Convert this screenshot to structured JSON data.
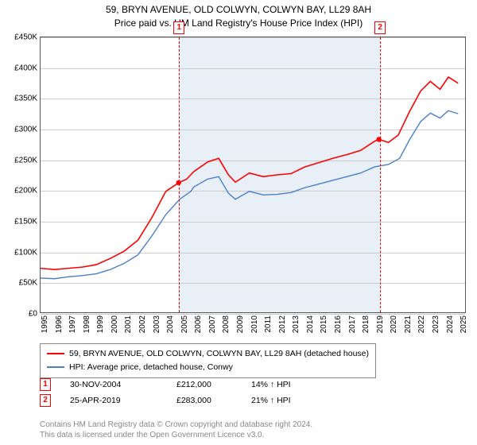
{
  "title": {
    "line1": "59, BRYN AVENUE, OLD COLWYN, COLWYN BAY, LL29 8AH",
    "line2": "Price paid vs. HM Land Registry's House Price Index (HPI)"
  },
  "chart": {
    "type": "line",
    "background_color": "#ffffff",
    "shaded_band_color": "#e8eff7",
    "grid_color": "#cccccc",
    "marker_border_color": "#ff0000",
    "x_years": [
      1995,
      1996,
      1997,
      1998,
      1999,
      2000,
      2001,
      2002,
      2003,
      2004,
      2005,
      2006,
      2007,
      2008,
      2009,
      2010,
      2011,
      2012,
      2013,
      2014,
      2015,
      2016,
      2017,
      2018,
      2019,
      2020,
      2021,
      2022,
      2023,
      2024,
      2025
    ],
    "xlim": [
      1995,
      2025.5
    ],
    "ylim": [
      0,
      450000
    ],
    "ytick_step": 50000,
    "y_ticks": [
      0,
      50000,
      100000,
      150000,
      200000,
      250000,
      300000,
      350000,
      400000,
      450000
    ],
    "y_tick_labels": [
      "£0",
      "£50K",
      "£100K",
      "£150K",
      "£200K",
      "£250K",
      "£300K",
      "£350K",
      "£400K",
      "£450K"
    ],
    "shaded_band": {
      "x_start": 2004.92,
      "x_end": 2019.31
    },
    "markers": [
      {
        "id": "1",
        "x": 2004.92,
        "y": 212000
      },
      {
        "id": "2",
        "x": 2019.31,
        "y": 283000
      }
    ],
    "series": [
      {
        "name": "property",
        "label": "59, BRYN AVENUE, OLD COLWYN, COLWYN BAY, LL29 8AH (detached house)",
        "color": "#ff0000",
        "line_width": 1.6,
        "points": [
          [
            1995,
            72000
          ],
          [
            1996,
            70000
          ],
          [
            1997,
            72000
          ],
          [
            1998,
            74000
          ],
          [
            1999,
            78000
          ],
          [
            2000,
            88000
          ],
          [
            2001,
            100000
          ],
          [
            2002,
            118000
          ],
          [
            2003,
            155000
          ],
          [
            2004,
            198000
          ],
          [
            2004.92,
            212000
          ],
          [
            2005.5,
            218000
          ],
          [
            2006,
            230000
          ],
          [
            2007,
            246000
          ],
          [
            2007.8,
            252000
          ],
          [
            2008.5,
            225000
          ],
          [
            2009,
            213000
          ],
          [
            2010,
            228000
          ],
          [
            2011,
            222000
          ],
          [
            2012,
            225000
          ],
          [
            2013,
            227000
          ],
          [
            2014,
            238000
          ],
          [
            2015,
            245000
          ],
          [
            2016,
            252000
          ],
          [
            2017,
            258000
          ],
          [
            2018,
            265000
          ],
          [
            2019,
            280000
          ],
          [
            2019.31,
            283000
          ],
          [
            2020,
            278000
          ],
          [
            2020.7,
            290000
          ],
          [
            2021.5,
            328000
          ],
          [
            2022.3,
            362000
          ],
          [
            2023,
            378000
          ],
          [
            2023.7,
            365000
          ],
          [
            2024.3,
            385000
          ],
          [
            2025,
            375000
          ]
        ]
      },
      {
        "name": "hpi",
        "label": "HPI: Average price, detached house, Conwy",
        "color": "#4a7fc8",
        "line_width": 1.4,
        "points": [
          [
            1995,
            56000
          ],
          [
            1996,
            55000
          ],
          [
            1997,
            58000
          ],
          [
            1998,
            60000
          ],
          [
            1999,
            63000
          ],
          [
            2000,
            70000
          ],
          [
            2001,
            80000
          ],
          [
            2002,
            94000
          ],
          [
            2003,
            125000
          ],
          [
            2004,
            160000
          ],
          [
            2005,
            185000
          ],
          [
            2005.8,
            198000
          ],
          [
            2006,
            205000
          ],
          [
            2007,
            218000
          ],
          [
            2007.8,
            222000
          ],
          [
            2008.5,
            195000
          ],
          [
            2009,
            185000
          ],
          [
            2010,
            198000
          ],
          [
            2011,
            192000
          ],
          [
            2012,
            193000
          ],
          [
            2013,
            196000
          ],
          [
            2014,
            204000
          ],
          [
            2015,
            210000
          ],
          [
            2016,
            216000
          ],
          [
            2017,
            222000
          ],
          [
            2018,
            228000
          ],
          [
            2019,
            238000
          ],
          [
            2020,
            242000
          ],
          [
            2020.8,
            252000
          ],
          [
            2021.5,
            282000
          ],
          [
            2022.3,
            312000
          ],
          [
            2023,
            326000
          ],
          [
            2023.7,
            318000
          ],
          [
            2024.3,
            330000
          ],
          [
            2025,
            325000
          ]
        ]
      }
    ]
  },
  "legend": {
    "items": [
      {
        "color": "#ff0000",
        "label": "59, BRYN AVENUE, OLD COLWYN, COLWYN BAY, LL29 8AH (detached house)"
      },
      {
        "color": "#4a7fc8",
        "label": "HPI: Average price, detached house, Conwy"
      }
    ]
  },
  "sales": [
    {
      "id": "1",
      "date": "30-NOV-2004",
      "price": "£212,000",
      "delta": "14% ↑ HPI"
    },
    {
      "id": "2",
      "date": "25-APR-2019",
      "price": "£283,000",
      "delta": "21% ↑ HPI"
    }
  ],
  "footer": {
    "line1": "Contains HM Land Registry data © Crown copyright and database right 2024.",
    "line2": "This data is licensed under the Open Government Licence v3.0."
  }
}
